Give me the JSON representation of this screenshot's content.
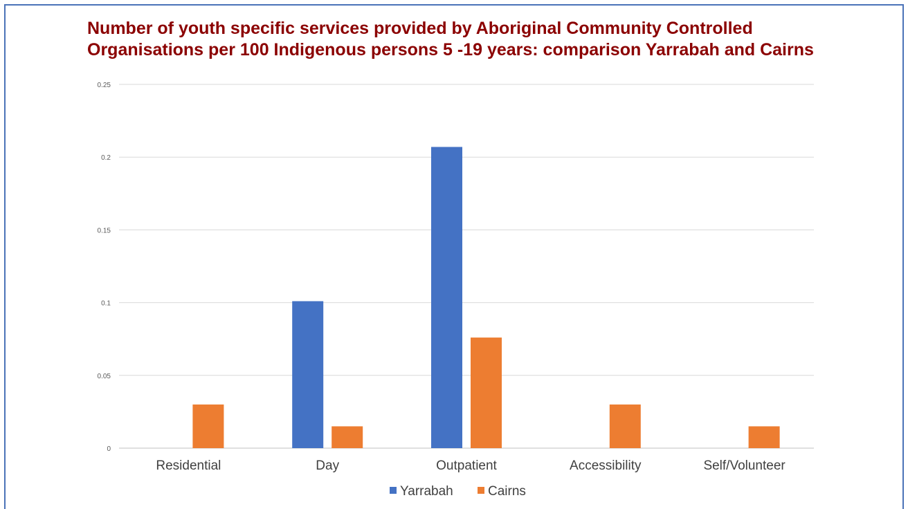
{
  "chart_data": {
    "type": "bar",
    "title": "Number of youth specific services provided by Aboriginal   Community Controlled Organisations per 100 Indigenous persons 5 -19 years: comparison Yarrabah and Cairns",
    "categories": [
      "Residential",
      "Day",
      "Outpatient",
      "Accessibility",
      "Self/Volunteer"
    ],
    "series": [
      {
        "name": "Yarrabah",
        "color": "#4472c4",
        "values": [
          0,
          0.101,
          0.207,
          0,
          0
        ]
      },
      {
        "name": "Cairns",
        "color": "#ed7d31",
        "values": [
          0.03,
          0.015,
          0.076,
          0.03,
          0.015
        ]
      }
    ],
    "yticks": [
      "0",
      "0.05",
      "0.1",
      "0.15",
      "0.2",
      "0.25"
    ],
    "ylim": [
      0,
      0.25
    ],
    "xlabel": "",
    "ylabel": "",
    "grid": true,
    "legend_position": "bottom"
  }
}
